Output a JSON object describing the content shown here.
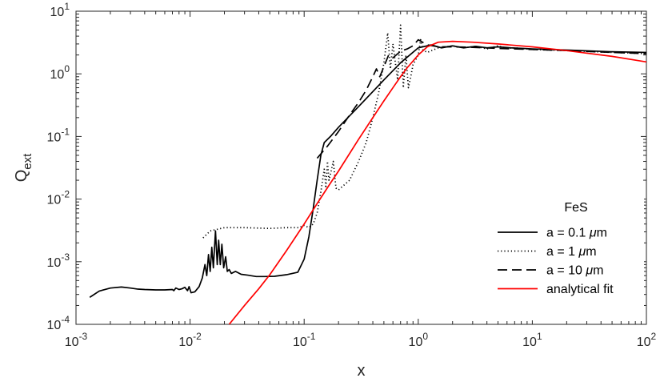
{
  "chart_data": {
    "type": "line",
    "title": "",
    "xlabel": "x",
    "ylabel": "Q",
    "ylabel_sub": "ext",
    "xscale": "log",
    "yscale": "log",
    "xlim": [
      0.001,
      100
    ],
    "ylim": [
      0.0001,
      10
    ],
    "grid": false,
    "legend_position": "bottom-right",
    "legend_title": "FeS",
    "x_ticks": [
      {
        "value": 0.001,
        "base": "10",
        "exp": "-3"
      },
      {
        "value": 0.01,
        "base": "10",
        "exp": "-2"
      },
      {
        "value": 0.1,
        "base": "10",
        "exp": "-1"
      },
      {
        "value": 1,
        "base": "10",
        "exp": "0"
      },
      {
        "value": 10,
        "base": "10",
        "exp": "1"
      },
      {
        "value": 100,
        "base": "10",
        "exp": "2"
      }
    ],
    "y_ticks": [
      {
        "value": 0.0001,
        "base": "10",
        "exp": "-4"
      },
      {
        "value": 0.001,
        "base": "10",
        "exp": "-3"
      },
      {
        "value": 0.01,
        "base": "10",
        "exp": "-2"
      },
      {
        "value": 0.1,
        "base": "10",
        "exp": "-1"
      },
      {
        "value": 1,
        "base": "10",
        "exp": "0"
      },
      {
        "value": 10,
        "base": "10",
        "exp": "1"
      }
    ],
    "series": [
      {
        "name": "a = 0.1 μm",
        "legend_parts": [
          "a = 0.1 ",
          "μ",
          "m"
        ],
        "color": "#000000",
        "dash": "solid",
        "points": [
          [
            0.00132,
            0.00027
          ],
          [
            0.0016,
            0.00034
          ],
          [
            0.002,
            0.00038
          ],
          [
            0.0025,
            0.000395
          ],
          [
            0.003,
            0.00038
          ],
          [
            0.0035,
            0.000365
          ],
          [
            0.004,
            0.00036
          ],
          [
            0.005,
            0.000355
          ],
          [
            0.006,
            0.000355
          ],
          [
            0.007,
            0.00036
          ],
          [
            0.0072,
            0.000345
          ],
          [
            0.0075,
            0.00038
          ],
          [
            0.008,
            0.00036
          ],
          [
            0.0085,
            0.00037
          ],
          [
            0.009,
            0.00039
          ],
          [
            0.0095,
            0.000345
          ],
          [
            0.0098,
            0.0004
          ],
          [
            0.0102,
            0.00032
          ],
          [
            0.011,
            0.00033
          ],
          [
            0.012,
            0.0004
          ],
          [
            0.0128,
            0.00055
          ],
          [
            0.0135,
            0.0009
          ],
          [
            0.014,
            0.0006
          ],
          [
            0.0145,
            0.0013
          ],
          [
            0.015,
            0.0007
          ],
          [
            0.0155,
            0.0017
          ],
          [
            0.016,
            0.0008
          ],
          [
            0.0167,
            0.0031
          ],
          [
            0.0173,
            0.0009
          ],
          [
            0.0178,
            0.0022
          ],
          [
            0.0184,
            0.0009
          ],
          [
            0.019,
            0.0019
          ],
          [
            0.0197,
            0.0008
          ],
          [
            0.0205,
            0.0012
          ],
          [
            0.0212,
            0.0007
          ],
          [
            0.022,
            0.00075
          ],
          [
            0.023,
            0.00065
          ],
          [
            0.025,
            0.0007
          ],
          [
            0.028,
            0.00063
          ],
          [
            0.032,
            0.00061
          ],
          [
            0.038,
            0.00058
          ],
          [
            0.045,
            0.00058
          ],
          [
            0.055,
            0.000585
          ],
          [
            0.07,
            0.00062
          ],
          [
            0.088,
            0.00068
          ],
          [
            0.1,
            0.0011
          ],
          [
            0.11,
            0.0025
          ],
          [
            0.12,
            0.007
          ],
          [
            0.13,
            0.02
          ],
          [
            0.14,
            0.05
          ],
          [
            0.15,
            0.08
          ],
          [
            0.17,
            0.1
          ],
          [
            0.2,
            0.14
          ],
          [
            0.3,
            0.3
          ],
          [
            0.5,
            0.8
          ],
          [
            0.7,
            1.5
          ],
          [
            1.0,
            2.6
          ],
          [
            1.3,
            2.9
          ],
          [
            1.6,
            2.6
          ],
          [
            2.0,
            2.8
          ],
          [
            2.5,
            2.6
          ],
          [
            3.2,
            2.75
          ],
          [
            4.0,
            2.6
          ],
          [
            5.0,
            2.7
          ],
          [
            6.5,
            2.6
          ],
          [
            8.0,
            2.55
          ],
          [
            10,
            2.5
          ],
          [
            20,
            2.4
          ],
          [
            50,
            2.25
          ],
          [
            100,
            2.2
          ]
        ]
      },
      {
        "name": "a = 1 μm",
        "legend_parts": [
          "a = 1 ",
          "μ",
          "m"
        ],
        "color": "#000000",
        "dash": "dotted",
        "points": [
          [
            0.013,
            0.0024
          ],
          [
            0.015,
            0.0031
          ],
          [
            0.02,
            0.0035
          ],
          [
            0.03,
            0.0035
          ],
          [
            0.05,
            0.0034
          ],
          [
            0.07,
            0.0035
          ],
          [
            0.09,
            0.0035
          ],
          [
            0.1,
            0.0038
          ],
          [
            0.11,
            0.0035
          ],
          [
            0.12,
            0.004
          ],
          [
            0.13,
            0.006
          ],
          [
            0.14,
            0.013
          ],
          [
            0.15,
            0.03
          ],
          [
            0.155,
            0.015
          ],
          [
            0.16,
            0.04
          ],
          [
            0.165,
            0.02
          ],
          [
            0.17,
            0.025
          ],
          [
            0.18,
            0.04
          ],
          [
            0.19,
            0.015
          ],
          [
            0.2,
            0.014
          ],
          [
            0.25,
            0.02
          ],
          [
            0.3,
            0.04
          ],
          [
            0.35,
            0.08
          ],
          [
            0.4,
            0.2
          ],
          [
            0.45,
            0.5
          ],
          [
            0.5,
            1.5
          ],
          [
            0.54,
            4.5
          ],
          [
            0.57,
            1.2
          ],
          [
            0.6,
            3.0
          ],
          [
            0.63,
            1.5
          ],
          [
            0.66,
            0.8
          ],
          [
            0.7,
            6.0
          ],
          [
            0.74,
            0.6
          ],
          [
            0.78,
            2.0
          ],
          [
            0.82,
            0.6
          ],
          [
            0.86,
            0.9
          ],
          [
            0.9,
            1.4
          ],
          [
            1.0,
            2.0
          ],
          [
            1.05,
            3.5
          ],
          [
            1.1,
            2.4
          ],
          [
            1.2,
            2.2
          ],
          [
            1.5,
            2.6
          ],
          [
            2.0,
            2.8
          ],
          [
            2.5,
            2.6
          ],
          [
            3.2,
            2.75
          ],
          [
            4.0,
            2.5
          ],
          [
            5.0,
            2.8
          ],
          [
            6.0,
            2.55
          ],
          [
            7.0,
            2.6
          ],
          [
            10,
            2.45
          ],
          [
            20,
            2.35
          ],
          [
            50,
            2.2
          ],
          [
            100,
            2.1
          ]
        ]
      },
      {
        "name": "a = 10 μm",
        "legend_parts": [
          "a = 10 ",
          "μ",
          "m"
        ],
        "color": "#000000",
        "dash": "dashed",
        "points": [
          [
            0.13,
            0.045
          ],
          [
            0.16,
            0.07
          ],
          [
            0.2,
            0.12
          ],
          [
            0.25,
            0.22
          ],
          [
            0.3,
            0.35
          ],
          [
            0.35,
            0.55
          ],
          [
            0.4,
            0.9
          ],
          [
            0.43,
            1.2
          ],
          [
            0.46,
            0.9
          ],
          [
            0.5,
            1.3
          ],
          [
            0.55,
            2.0
          ],
          [
            0.6,
            1.8
          ],
          [
            0.7,
            2.3
          ],
          [
            0.8,
            2.5
          ],
          [
            0.9,
            2.8
          ],
          [
            1.0,
            3.5
          ],
          [
            1.2,
            2.9
          ],
          [
            1.5,
            2.7
          ],
          [
            2,
            2.7
          ],
          [
            3,
            2.65
          ],
          [
            5,
            2.55
          ],
          [
            10,
            2.45
          ],
          [
            20,
            2.35
          ],
          [
            50,
            2.2
          ],
          [
            100,
            2.1
          ]
        ]
      },
      {
        "name": "analytical fit",
        "legend_parts": [
          "analytical fit"
        ],
        "color": "#ff0000",
        "dash": "solid",
        "points": [
          [
            0.022,
            0.0001
          ],
          [
            0.03,
            0.0002
          ],
          [
            0.04,
            0.00037
          ],
          [
            0.05,
            0.00062
          ],
          [
            0.07,
            0.0015
          ],
          [
            0.1,
            0.004
          ],
          [
            0.13,
            0.0085
          ],
          [
            0.17,
            0.018
          ],
          [
            0.2,
            0.028
          ],
          [
            0.3,
            0.09
          ],
          [
            0.4,
            0.2
          ],
          [
            0.5,
            0.37
          ],
          [
            0.6,
            0.6
          ],
          [
            0.7,
            0.9
          ],
          [
            0.8,
            1.25
          ],
          [
            1.0,
            2.0
          ],
          [
            1.2,
            2.7
          ],
          [
            1.5,
            3.2
          ],
          [
            2.0,
            3.3
          ],
          [
            3.0,
            3.2
          ],
          [
            5.0,
            3.0
          ],
          [
            10,
            2.7
          ],
          [
            20,
            2.35
          ],
          [
            50,
            1.9
          ],
          [
            100,
            1.55
          ]
        ]
      }
    ]
  }
}
